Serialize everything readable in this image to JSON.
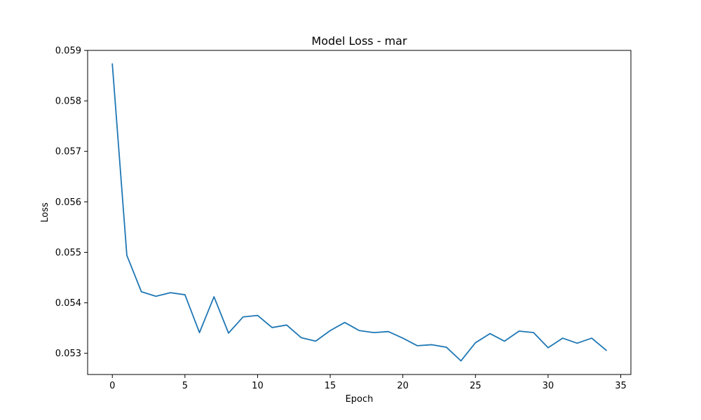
{
  "chart_data": {
    "type": "line",
    "title": "Model Loss - mar",
    "xlabel": "Epoch",
    "ylabel": "Loss",
    "xlim": [
      -1.7,
      35.7
    ],
    "ylim": [
      0.05258,
      0.059
    ],
    "xticks": [
      0,
      5,
      10,
      15,
      20,
      25,
      30,
      35
    ],
    "yticks": [
      0.053,
      0.054,
      0.055,
      0.056,
      0.057,
      0.058,
      0.059
    ],
    "grid": false,
    "series": [
      {
        "color": "#1f77b4",
        "x": [
          0,
          1,
          2,
          3,
          4,
          5,
          6,
          7,
          8,
          9,
          10,
          11,
          12,
          13,
          14,
          15,
          16,
          17,
          18,
          19,
          20,
          21,
          22,
          23,
          24,
          25,
          26,
          27,
          28,
          29,
          30,
          31,
          32,
          33,
          34
        ],
        "values": [
          0.05873,
          0.05494,
          0.05422,
          0.05413,
          0.0542,
          0.05416,
          0.05341,
          0.05412,
          0.0534,
          0.05372,
          0.05375,
          0.05351,
          0.05356,
          0.05331,
          0.05324,
          0.05345,
          0.05361,
          0.05345,
          0.05341,
          0.05343,
          0.0533,
          0.05315,
          0.05317,
          0.05312,
          0.05285,
          0.05321,
          0.05339,
          0.05324,
          0.05344,
          0.05341,
          0.05311,
          0.0533,
          0.0532,
          0.0533,
          0.05306
        ]
      }
    ]
  }
}
